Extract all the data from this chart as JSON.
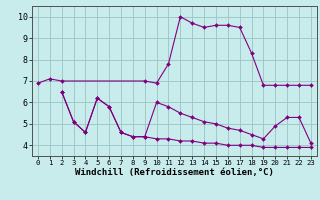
{
  "background_color": "#c8ecec",
  "line_color": "#800080",
  "grid_color": "#a0c8c8",
  "xlabel": "Windchill (Refroidissement éolien,°C)",
  "xlabel_fontsize": 6.5,
  "tick_fontsize": 6.0,
  "xlim": [
    -0.5,
    23.5
  ],
  "ylim": [
    3.5,
    10.5
  ],
  "yticks": [
    4,
    5,
    6,
    7,
    8,
    9,
    10
  ],
  "xticks": [
    0,
    1,
    2,
    3,
    4,
    5,
    6,
    7,
    8,
    9,
    10,
    11,
    12,
    13,
    14,
    15,
    16,
    17,
    18,
    19,
    20,
    21,
    22,
    23
  ],
  "series": [
    {
      "x": [
        0,
        1,
        2,
        9,
        10,
        11,
        12,
        13,
        14,
        15,
        16,
        17,
        18,
        19,
        20,
        21,
        22,
        23
      ],
      "y": [
        6.9,
        7.1,
        7.0,
        7.0,
        6.9,
        7.8,
        10.0,
        9.7,
        9.5,
        9.6,
        9.6,
        9.5,
        8.3,
        6.8,
        6.8,
        6.8,
        6.8,
        6.8
      ]
    },
    {
      "x": [
        2,
        3,
        4,
        5,
        6,
        7,
        8,
        9,
        10,
        11,
        12,
        13,
        14,
        15,
        16,
        17,
        18,
        19,
        20,
        21,
        22,
        23
      ],
      "y": [
        6.5,
        5.1,
        4.6,
        6.2,
        5.8,
        4.6,
        4.4,
        4.4,
        6.0,
        5.8,
        5.5,
        5.3,
        5.1,
        5.0,
        4.8,
        4.7,
        4.5,
        4.3,
        4.9,
        5.3,
        5.3,
        4.1
      ]
    },
    {
      "x": [
        2,
        3,
        4,
        5,
        6,
        7,
        8,
        9,
        10,
        11,
        12,
        13,
        14,
        15,
        16,
        17,
        18,
        19,
        20,
        21,
        22,
        23
      ],
      "y": [
        6.5,
        5.1,
        4.6,
        6.2,
        5.8,
        4.6,
        4.4,
        4.4,
        4.3,
        4.3,
        4.2,
        4.2,
        4.1,
        4.1,
        4.0,
        4.0,
        4.0,
        3.9,
        3.9,
        3.9,
        3.9,
        3.9
      ]
    }
  ]
}
